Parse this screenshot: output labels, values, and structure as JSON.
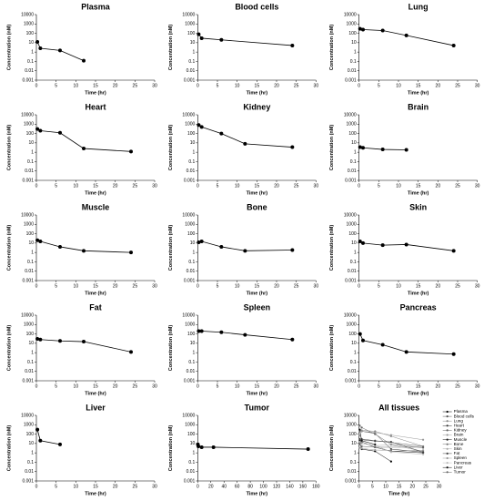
{
  "chart_data": [
    {
      "type": "line",
      "title": "Plasma",
      "xlabel": "Time (hr)",
      "ylabel": "Concentration (nM)",
      "log_y": true,
      "ylim": [
        0.001,
        10000
      ],
      "yticks": [
        0.001,
        0.01,
        0.1,
        1,
        10,
        100,
        1000,
        10000
      ],
      "xlim": [
        0,
        30
      ],
      "xticks": [
        0,
        5,
        10,
        15,
        20,
        25,
        30
      ],
      "color": "#000000",
      "x": [
        0.25,
        1,
        6,
        12
      ],
      "values": [
        12,
        2.5,
        1.5,
        0.12
      ]
    },
    {
      "type": "line",
      "title": "Blood cells",
      "xlabel": "Time (hr)",
      "ylabel": "Concentration (nM)",
      "log_y": true,
      "ylim": [
        0.001,
        10000
      ],
      "yticks": [
        0.001,
        0.01,
        0.1,
        1,
        10,
        100,
        1000,
        10000
      ],
      "xlim": [
        0,
        30
      ],
      "xticks": [
        0,
        5,
        10,
        15,
        20,
        25,
        30
      ],
      "color": "#000000",
      "x": [
        0.25,
        1,
        6,
        24
      ],
      "values": [
        80,
        30,
        20,
        5
      ]
    },
    {
      "type": "line",
      "title": "Lung",
      "xlabel": "Time (hr)",
      "ylabel": "Concentration (nM)",
      "log_y": true,
      "ylim": [
        0.001,
        10000
      ],
      "yticks": [
        0.001,
        0.01,
        0.1,
        1,
        10,
        100,
        1000,
        10000
      ],
      "xlim": [
        0,
        30
      ],
      "xticks": [
        0,
        5,
        10,
        15,
        20,
        25,
        30
      ],
      "color": "#000000",
      "x": [
        0.25,
        1,
        6,
        12,
        24
      ],
      "values": [
        300,
        250,
        200,
        60,
        5
      ]
    },
    {
      "type": "line",
      "title": "Heart",
      "xlabel": "Time (hr)",
      "ylabel": "Concentration (nM)",
      "log_y": true,
      "ylim": [
        0.001,
        10000
      ],
      "yticks": [
        0.001,
        0.01,
        0.1,
        1,
        10,
        100,
        1000,
        10000
      ],
      "xlim": [
        0,
        30
      ],
      "xticks": [
        0,
        5,
        10,
        15,
        20,
        25,
        30
      ],
      "color": "#000000",
      "x": [
        0.25,
        1,
        6,
        12,
        24
      ],
      "values": [
        300,
        200,
        120,
        2.5,
        1.2
      ]
    },
    {
      "type": "line",
      "title": "Kidney",
      "xlabel": "Time (hr)",
      "ylabel": "Concentration (nM)",
      "log_y": true,
      "ylim": [
        0.001,
        10000
      ],
      "yticks": [
        0.001,
        0.01,
        0.1,
        1,
        10,
        100,
        1000,
        10000
      ],
      "xlim": [
        0,
        30
      ],
      "xticks": [
        0,
        5,
        10,
        15,
        20,
        25,
        30
      ],
      "color": "#000000",
      "x": [
        0.25,
        1,
        6,
        12,
        24
      ],
      "values": [
        800,
        500,
        100,
        8,
        3.5
      ]
    },
    {
      "type": "line",
      "title": "Brain",
      "xlabel": "Time (hr)",
      "ylabel": "Concentration (nM)",
      "log_y": true,
      "ylim": [
        0.001,
        10000
      ],
      "yticks": [
        0.001,
        0.01,
        0.1,
        1,
        10,
        100,
        1000,
        10000
      ],
      "xlim": [
        0,
        30
      ],
      "xticks": [
        0,
        5,
        10,
        15,
        20,
        25,
        30
      ],
      "color": "#000000",
      "x": [
        0.25,
        1,
        6,
        12
      ],
      "values": [
        3.5,
        3,
        2,
        1.8
      ]
    },
    {
      "type": "line",
      "title": "Muscle",
      "xlabel": "Time (hr)",
      "ylabel": "Concentration (nM)",
      "log_y": true,
      "ylim": [
        0.001,
        10000
      ],
      "yticks": [
        0.001,
        0.01,
        0.1,
        1,
        10,
        100,
        1000,
        10000
      ],
      "xlim": [
        0,
        30
      ],
      "xticks": [
        0,
        5,
        10,
        15,
        20,
        25,
        30
      ],
      "color": "#000000",
      "x": [
        0.25,
        1,
        6,
        12,
        24
      ],
      "values": [
        20,
        15,
        4,
        1.5,
        1
      ]
    },
    {
      "type": "line",
      "title": "Bone",
      "xlabel": "Time (hr)",
      "ylabel": "Concentration (nM)",
      "log_y": true,
      "ylim": [
        0.001,
        10000
      ],
      "yticks": [
        0.001,
        0.01,
        0.1,
        1,
        10,
        100,
        1000,
        10000
      ],
      "xlim": [
        0,
        30
      ],
      "xticks": [
        0,
        5,
        10,
        15,
        20,
        25,
        30
      ],
      "color": "#000000",
      "x": [
        0.25,
        1,
        6,
        12,
        24
      ],
      "values": [
        12,
        15,
        4,
        1.5,
        1.8
      ]
    },
    {
      "type": "line",
      "title": "Skin",
      "xlabel": "Time (hr)",
      "ylabel": "Concentration (nM)",
      "log_y": true,
      "ylim": [
        0.001,
        10000
      ],
      "yticks": [
        0.001,
        0.01,
        0.1,
        1,
        10,
        100,
        1000,
        10000
      ],
      "xlim": [
        0,
        30
      ],
      "xticks": [
        0,
        5,
        10,
        15,
        20,
        25,
        30
      ],
      "color": "#000000",
      "x": [
        0.25,
        1,
        6,
        12,
        24
      ],
      "values": [
        15,
        10,
        6,
        7,
        1.5
      ]
    },
    {
      "type": "line",
      "title": "Fat",
      "xlabel": "Time (hr)",
      "ylabel": "Concentration (nM)",
      "log_y": true,
      "ylim": [
        0.001,
        10000
      ],
      "yticks": [
        0.001,
        0.01,
        0.1,
        1,
        10,
        100,
        1000,
        10000
      ],
      "xlim": [
        0,
        30
      ],
      "xticks": [
        0,
        5,
        10,
        15,
        20,
        25,
        30
      ],
      "color": "#000000",
      "x": [
        0.25,
        1,
        6,
        12,
        24
      ],
      "values": [
        30,
        25,
        18,
        15,
        1.2
      ]
    },
    {
      "type": "line",
      "title": "Spleen",
      "xlabel": "Time (hr)",
      "ylabel": "Concentration (nM)",
      "log_y": true,
      "ylim": [
        0.001,
        10000
      ],
      "yticks": [
        0.001,
        0.01,
        0.1,
        1,
        10,
        100,
        1000,
        10000
      ],
      "xlim": [
        0,
        30
      ],
      "xticks": [
        0,
        5,
        10,
        15,
        20,
        25,
        30
      ],
      "color": "#000000",
      "x": [
        0.25,
        1,
        6,
        12,
        24
      ],
      "values": [
        200,
        200,
        150,
        80,
        25
      ]
    },
    {
      "type": "line",
      "title": "Pancreas",
      "xlabel": "Time (hr)",
      "ylabel": "Concentration (nM)",
      "log_y": true,
      "ylim": [
        0.001,
        10000
      ],
      "yticks": [
        0.001,
        0.01,
        0.1,
        1,
        10,
        100,
        1000,
        10000
      ],
      "xlim": [
        0,
        30
      ],
      "xticks": [
        0,
        5,
        10,
        15,
        20,
        25,
        30
      ],
      "color": "#000000",
      "x": [
        0.25,
        1,
        6,
        12,
        24
      ],
      "values": [
        100,
        20,
        7,
        1.2,
        0.7
      ]
    },
    {
      "type": "line",
      "title": "Liver",
      "xlabel": "Time (hr)",
      "ylabel": "Concentration (nM)",
      "log_y": true,
      "ylim": [
        0.001,
        10000
      ],
      "yticks": [
        0.001,
        0.01,
        0.1,
        1,
        10,
        100,
        1000,
        10000
      ],
      "xlim": [
        0,
        30
      ],
      "xticks": [
        0,
        5,
        10,
        15,
        20,
        25,
        30
      ],
      "color": "#000000",
      "x": [
        0.25,
        1,
        6
      ],
      "values": [
        300,
        20,
        8
      ]
    },
    {
      "type": "line",
      "title": "Tumor",
      "xlabel": "Time (hr)",
      "ylabel": "Concentration (nM)",
      "log_y": true,
      "ylim": [
        0.001,
        10000
      ],
      "yticks": [
        0.001,
        0.01,
        0.1,
        1,
        10,
        100,
        1000,
        10000
      ],
      "xlim": [
        0,
        180
      ],
      "xticks": [
        0,
        20,
        40,
        60,
        80,
        100,
        120,
        140,
        160,
        180
      ],
      "color": "#000000",
      "x": [
        0.25,
        1,
        6,
        24,
        168
      ],
      "values": [
        8,
        5,
        4,
        4,
        2.5
      ]
    },
    {
      "type": "multi_line",
      "title": "All tissues",
      "xlabel": "Time (hr)",
      "ylabel": "Concentration (nM)",
      "log_y": true,
      "ylim": [
        0.001,
        10000
      ],
      "yticks": [
        0.001,
        0.01,
        0.1,
        1,
        10,
        100,
        1000,
        10000
      ],
      "xlim": [
        0,
        30
      ],
      "xticks": [
        0,
        5,
        10,
        15,
        20,
        25,
        30
      ],
      "series": [
        {
          "name": "Plasma",
          "color": "#000000",
          "x": [
            0.25,
            1,
            6,
            12
          ],
          "values": [
            12,
            2.5,
            1.5,
            0.12
          ]
        },
        {
          "name": "Blood cells",
          "color": "#555555",
          "x": [
            0.25,
            1,
            6,
            24
          ],
          "values": [
            80,
            30,
            20,
            5
          ]
        },
        {
          "name": "Lung",
          "color": "#888888",
          "x": [
            0.25,
            1,
            6,
            12,
            24
          ],
          "values": [
            300,
            250,
            200,
            60,
            5
          ]
        },
        {
          "name": "Heart",
          "color": "#333333",
          "x": [
            0.25,
            1,
            6,
            12,
            24
          ],
          "values": [
            300,
            200,
            120,
            2.5,
            1.2
          ]
        },
        {
          "name": "Kidney",
          "color": "#666666",
          "x": [
            0.25,
            1,
            6,
            12,
            24
          ],
          "values": [
            800,
            500,
            100,
            8,
            3.5
          ]
        },
        {
          "name": "Brain",
          "color": "#999999",
          "x": [
            0.25,
            1,
            6,
            12
          ],
          "values": [
            3.5,
            3,
            2,
            1.8
          ]
        },
        {
          "name": "Muscle",
          "color": "#222222",
          "x": [
            0.25,
            1,
            6,
            12,
            24
          ],
          "values": [
            20,
            15,
            4,
            1.5,
            1
          ]
        },
        {
          "name": "Bone",
          "color": "#777777",
          "x": [
            0.25,
            1,
            6,
            12,
            24
          ],
          "values": [
            12,
            15,
            4,
            1.5,
            1.8
          ]
        },
        {
          "name": "Skin",
          "color": "#aaaaaa",
          "x": [
            0.25,
            1,
            6,
            12,
            24
          ],
          "values": [
            15,
            10,
            6,
            7,
            1.5
          ]
        },
        {
          "name": "Fat",
          "color": "#444444",
          "x": [
            0.25,
            1,
            6,
            12,
            24
          ],
          "values": [
            30,
            25,
            18,
            15,
            1.2
          ]
        },
        {
          "name": "Spleen",
          "color": "#999999",
          "x": [
            0.25,
            1,
            6,
            12,
            24
          ],
          "values": [
            200,
            200,
            150,
            80,
            25
          ]
        },
        {
          "name": "Pancreas",
          "color": "#bbbbbb",
          "x": [
            0.25,
            1,
            6,
            12,
            24
          ],
          "values": [
            100,
            20,
            7,
            1.2,
            0.7
          ]
        },
        {
          "name": "Liver",
          "color": "#111111",
          "x": [
            0.25,
            1,
            6
          ],
          "values": [
            300,
            20,
            8
          ]
        },
        {
          "name": "Tumor",
          "color": "#666666",
          "x": [
            0.25,
            1,
            6,
            24
          ],
          "values": [
            8,
            5,
            4,
            4
          ]
        }
      ]
    }
  ]
}
